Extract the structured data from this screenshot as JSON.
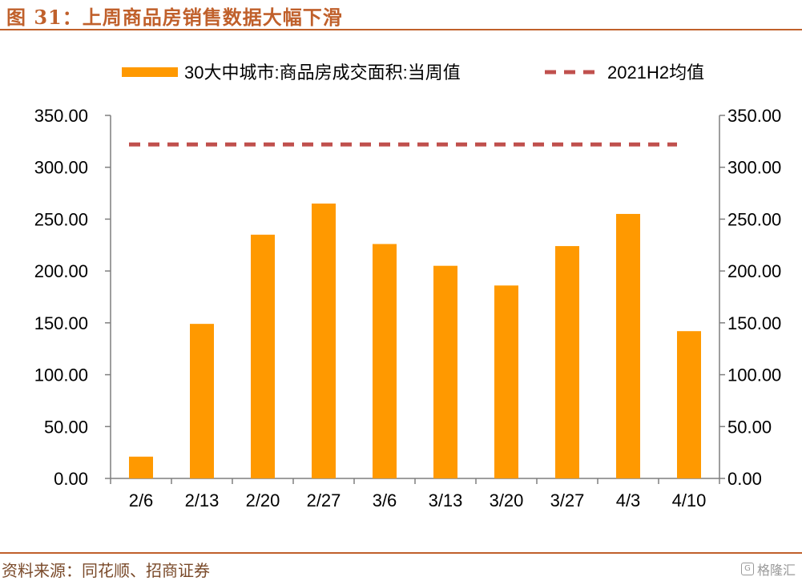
{
  "header": {
    "title": "图 31：上周商品房销售数据大幅下滑"
  },
  "footer": {
    "source": "资料来源：同花顺、招商证券",
    "watermark": "格隆汇"
  },
  "colors": {
    "bar": "#ff9900",
    "avg_line": "#c0504d",
    "accent": "#c0602b"
  },
  "chart_data": {
    "type": "bar",
    "categories": [
      "2/6",
      "2/13",
      "2/20",
      "2/27",
      "3/6",
      "3/13",
      "3/20",
      "3/27",
      "4/3",
      "4/10"
    ],
    "series": [
      {
        "name": "30大中城市:商品房成交面积:当周值",
        "type": "bar",
        "values": [
          21,
          149,
          235,
          265,
          226,
          205,
          186,
          224,
          255,
          142
        ]
      },
      {
        "name": "2021H2均值",
        "type": "line-dashed",
        "values": [
          322,
          322,
          322,
          322,
          322,
          322,
          322,
          322,
          322,
          322
        ]
      }
    ],
    "ylim": [
      0,
      350
    ],
    "yticks": [
      "0.00",
      "50.00",
      "100.00",
      "150.00",
      "200.00",
      "250.00",
      "300.00",
      "350.00"
    ],
    "ytick_values": [
      0,
      50,
      100,
      150,
      200,
      250,
      300,
      350
    ],
    "secondary_yticks": [
      "0.00",
      "50.00",
      "100.00",
      "150.00",
      "200.00",
      "250.00",
      "300.00",
      "350.00"
    ],
    "legend_position": "top",
    "grid": false
  }
}
